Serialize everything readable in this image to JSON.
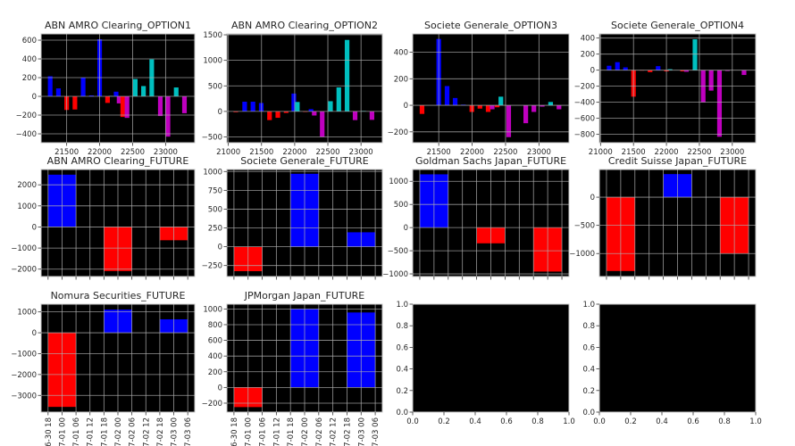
{
  "colors": {
    "b": "#0000ff",
    "r": "#ff0000",
    "c": "#00bfbf",
    "m": "#bf00bf",
    "axes_bg": "#000000",
    "grid": "#b0b0b0"
  },
  "chart_data": [
    {
      "type": "bar",
      "title": "ABN AMRO Clearing_OPTION1",
      "xlim": [
        21112,
        23442
      ],
      "ylim": [
        -495,
        667
      ],
      "grid": true,
      "align": "center",
      "bar_width": 70,
      "xticks": [
        21500,
        22000,
        22500,
        23000
      ],
      "xticklabels": [
        "21500",
        "22000",
        "22500",
        "23000"
      ],
      "yticks": [
        -400,
        -200,
        0,
        200,
        400,
        600
      ],
      "yticklabels": [
        "−400",
        "−200",
        "0",
        "200",
        "400",
        "600"
      ],
      "bars": [
        [
          21250,
          215,
          "b"
        ],
        [
          21375,
          85,
          "b"
        ],
        [
          21500,
          -145,
          "r"
        ],
        [
          21625,
          -140,
          "r"
        ],
        [
          21750,
          200,
          "b"
        ],
        [
          21875,
          10,
          "b"
        ],
        [
          22000,
          610,
          "b"
        ],
        [
          22120,
          -70,
          "r"
        ],
        [
          22170,
          5,
          "c"
        ],
        [
          22250,
          50,
          "b"
        ],
        [
          22295,
          -75,
          "m"
        ],
        [
          22350,
          -220,
          "r"
        ],
        [
          22415,
          -230,
          "m"
        ],
        [
          22540,
          185,
          "c"
        ],
        [
          22665,
          110,
          "c"
        ],
        [
          22790,
          395,
          "c"
        ],
        [
          22920,
          -210,
          "m"
        ],
        [
          23036,
          -430,
          "m"
        ],
        [
          23161,
          95,
          "c"
        ],
        [
          23286,
          -180,
          "m"
        ]
      ]
    },
    {
      "type": "bar",
      "title": "ABN AMRO Clearing_OPTION2",
      "xlim": [
        20978,
        23321
      ],
      "ylim": [
        -613,
        1518
      ],
      "grid": true,
      "align": "center",
      "bar_width": 70,
      "xticks": [
        21000,
        21500,
        22000,
        22500,
        23000
      ],
      "xticklabels": [
        "21000",
        "21500",
        "22000",
        "22500",
        "23000"
      ],
      "yticks": [
        -500,
        0,
        500,
        1000,
        1500
      ],
      "yticklabels": [
        "−500",
        "0",
        "500",
        "1000",
        "1500"
      ],
      "bars": [
        [
          21112,
          -15,
          "r"
        ],
        [
          21246,
          190,
          "b"
        ],
        [
          21371,
          190,
          "b"
        ],
        [
          21496,
          165,
          "b"
        ],
        [
          21621,
          -170,
          "r"
        ],
        [
          21746,
          -125,
          "r"
        ],
        [
          21871,
          -30,
          "r"
        ],
        [
          21987,
          350,
          "b"
        ],
        [
          22040,
          185,
          "c"
        ],
        [
          22161,
          -10,
          "r"
        ],
        [
          22246,
          45,
          "b"
        ],
        [
          22295,
          -80,
          "m"
        ],
        [
          22415,
          -500,
          "m"
        ],
        [
          22540,
          200,
          "c"
        ],
        [
          22665,
          470,
          "c"
        ],
        [
          22790,
          1400,
          "c"
        ],
        [
          22911,
          -170,
          "m"
        ],
        [
          23040,
          10,
          "c"
        ],
        [
          23165,
          -165,
          "m"
        ]
      ]
    },
    {
      "type": "bar",
      "title": "Societe Generale_OPTION3",
      "xlim": [
        21110,
        23450
      ],
      "ylim": [
        -282,
        538
      ],
      "grid": true,
      "align": "center",
      "bar_width": 70,
      "xticks": [
        21500,
        22000,
        22500,
        23000
      ],
      "xticklabels": [
        "21500",
        "22000",
        "22500",
        "23000"
      ],
      "yticks": [
        -200,
        0,
        200,
        400
      ],
      "yticklabels": [
        "−200",
        "0",
        "200",
        "400"
      ],
      "bars": [
        [
          21250,
          -65,
          "r"
        ],
        [
          21500,
          500,
          "b"
        ],
        [
          21625,
          145,
          "b"
        ],
        [
          21746,
          55,
          "b"
        ],
        [
          21870,
          5,
          "b"
        ],
        [
          21996,
          -50,
          "r"
        ],
        [
          22117,
          -25,
          "r"
        ],
        [
          22240,
          -50,
          "r"
        ],
        [
          22300,
          -30,
          "m"
        ],
        [
          22375,
          -15,
          "r"
        ],
        [
          22430,
          65,
          "c"
        ],
        [
          22547,
          -240,
          "m"
        ],
        [
          22803,
          -135,
          "m"
        ],
        [
          22924,
          -50,
          "m"
        ],
        [
          23049,
          -10,
          "m"
        ],
        [
          23175,
          25,
          "c"
        ],
        [
          23300,
          -30,
          "m"
        ]
      ]
    },
    {
      "type": "bar",
      "title": "Societe Generale_OPTION4",
      "xlim": [
        20982,
        23355
      ],
      "ylim": [
        -904,
        452
      ],
      "grid": true,
      "align": "center",
      "bar_width": 70,
      "xticks": [
        21000,
        21500,
        22000,
        22500,
        23000
      ],
      "xticklabels": [
        "21000",
        "21500",
        "22000",
        "22500",
        "23000"
      ],
      "yticks": [
        -800,
        -600,
        -400,
        -200,
        0,
        200,
        400
      ],
      "yticklabels": [
        "−800",
        "−600",
        "−400",
        "−200",
        "0",
        "200",
        "400"
      ],
      "bars": [
        [
          21130,
          55,
          "b"
        ],
        [
          21256,
          100,
          "b"
        ],
        [
          21378,
          35,
          "b"
        ],
        [
          21500,
          -330,
          "r"
        ],
        [
          21626,
          -5,
          "r"
        ],
        [
          21752,
          -25,
          "r"
        ],
        [
          21874,
          50,
          "b"
        ],
        [
          22000,
          -15,
          "r"
        ],
        [
          22054,
          12,
          "c"
        ],
        [
          22245,
          -15,
          "r"
        ],
        [
          22303,
          -20,
          "m"
        ],
        [
          22433,
          385,
          "c"
        ],
        [
          22558,
          -400,
          "m"
        ],
        [
          22679,
          -255,
          "m"
        ],
        [
          22805,
          -830,
          "m"
        ],
        [
          22926,
          -10,
          "m"
        ],
        [
          23178,
          -60,
          "m"
        ]
      ]
    },
    {
      "type": "bar",
      "title": "ABN AMRO Clearing_FUTURE",
      "xlim": [
        -3,
        63
      ],
      "ylim": [
        -2350,
        2727
      ],
      "grid": true,
      "align": "edge",
      "bar_width": 12,
      "xticks": [
        0,
        6,
        12,
        18,
        24,
        30,
        36,
        42,
        48,
        54,
        60
      ],
      "yticks": [
        -2000,
        -1000,
        0,
        1000,
        2000
      ],
      "yticklabels": [
        "−2000",
        "−1000",
        "0",
        "1000",
        "2000"
      ],
      "bars": [
        [
          0,
          2480,
          "b"
        ],
        [
          24,
          -2090,
          "r"
        ],
        [
          48,
          -630,
          "r"
        ]
      ]
    },
    {
      "type": "bar",
      "title": "Societe Generale_FUTURE",
      "xlim": [
        -3,
        63
      ],
      "ylim": [
        -396,
        1027
      ],
      "grid": true,
      "align": "edge",
      "bar_width": 12,
      "xticks": [
        0,
        6,
        12,
        18,
        24,
        30,
        36,
        42,
        48,
        54,
        60
      ],
      "yticks": [
        -250,
        0,
        250,
        500,
        750,
        1000
      ],
      "yticklabels": [
        "−250",
        "0",
        "250",
        "500",
        "750",
        "1000"
      ],
      "bars": [
        [
          0,
          -325,
          "r"
        ],
        [
          24,
          970,
          "b"
        ],
        [
          48,
          192,
          "b"
        ]
      ]
    },
    {
      "type": "bar",
      "title": "Goldman Sachs Japan_FUTURE",
      "xlim": [
        -3,
        63
      ],
      "ylim": [
        -1057,
        1255
      ],
      "grid": true,
      "align": "edge",
      "bar_width": 12,
      "xticks": [
        0,
        6,
        12,
        18,
        24,
        30,
        36,
        42,
        48,
        54,
        60
      ],
      "yticks": [
        -1000,
        -500,
        0,
        500,
        1000
      ],
      "yticklabels": [
        "−1000",
        "−500",
        "0",
        "500",
        "1000"
      ],
      "bars": [
        [
          0,
          1150,
          "b"
        ],
        [
          24,
          -340,
          "r"
        ],
        [
          48,
          -950,
          "r"
        ]
      ]
    },
    {
      "type": "bar",
      "title": "Credit Suisse Japan_FUTURE",
      "xlim": [
        -3,
        63
      ],
      "ylim": [
        -1408,
        492
      ],
      "grid": true,
      "align": "edge",
      "bar_width": 12,
      "xticks": [
        0,
        6,
        12,
        18,
        24,
        30,
        36,
        42,
        48,
        54,
        60
      ],
      "yticks": [
        -1000,
        -500,
        0
      ],
      "yticklabels": [
        "−1000",
        "−500",
        "0"
      ],
      "bars": [
        [
          0,
          -1310,
          "r"
        ],
        [
          24,
          410,
          "b"
        ],
        [
          48,
          -1000,
          "r"
        ]
      ]
    },
    {
      "type": "bar",
      "title": "Nomura Securities_FUTURE",
      "xlim": [
        -3,
        63
      ],
      "ylim": [
        -3800,
        1370
      ],
      "grid": true,
      "align": "edge",
      "bar_width": 12,
      "xticks": [
        0,
        6,
        12,
        18,
        24,
        30,
        36,
        42,
        48,
        54,
        60
      ],
      "xticklabels": [
        "06-30 18",
        "07-01 00",
        "07-01 06",
        "07-01 12",
        "07-01 18",
        "07-02 00",
        "07-02 06",
        "07-02 12",
        "07-02 18",
        "07-03 00",
        "07-03 06"
      ],
      "rotate_x": true,
      "yticks": [
        -3000,
        -2000,
        -1000,
        0,
        1000
      ],
      "yticklabels": [
        "−3000",
        "−2000",
        "−1000",
        "0",
        "1000"
      ],
      "bars": [
        [
          0,
          -3550,
          "r"
        ],
        [
          24,
          1110,
          "b"
        ],
        [
          48,
          645,
          "b"
        ]
      ]
    },
    {
      "type": "bar",
      "title": "JPMorgan Japan_FUTURE",
      "xlim": [
        -3,
        63
      ],
      "ylim": [
        -314,
        1061
      ],
      "grid": true,
      "align": "edge",
      "bar_width": 12,
      "xticks": [
        0,
        6,
        12,
        18,
        24,
        30,
        36,
        42,
        48,
        54,
        60
      ],
      "xticklabels": [
        "06-30 18",
        "07-01 00",
        "07-01 06",
        "07-01 12",
        "07-01 18",
        "07-02 00",
        "07-02 06",
        "07-02 12",
        "07-02 18",
        "07-03 00",
        "07-03 06"
      ],
      "rotate_x": true,
      "yticks": [
        -200,
        0,
        200,
        400,
        600,
        800,
        1000
      ],
      "yticklabels": [
        "−200",
        "0",
        "200",
        "400",
        "600",
        "800",
        "1000"
      ],
      "bars": [
        [
          0,
          -250,
          "r"
        ],
        [
          24,
          1000,
          "b"
        ],
        [
          48,
          955,
          "b"
        ]
      ]
    },
    {
      "type": "bar",
      "title": "",
      "xlim": [
        0,
        1
      ],
      "ylim": [
        0,
        1
      ],
      "grid": false,
      "align": "edge",
      "bar_width": 0,
      "xticks": [
        0,
        0.2,
        0.4,
        0.6,
        0.8,
        1.0
      ],
      "xticklabels": [
        "0.0",
        "0.2",
        "0.4",
        "0.6",
        "0.8",
        "1.0"
      ],
      "yticks": [
        0,
        0.2,
        0.4,
        0.6,
        0.8,
        1.0
      ],
      "yticklabels": [
        "0.0",
        "0.2",
        "0.4",
        "0.6",
        "0.8",
        "1.0"
      ],
      "bars": []
    },
    {
      "type": "bar",
      "title": "",
      "xlim": [
        0,
        1
      ],
      "ylim": [
        0,
        1
      ],
      "grid": false,
      "align": "edge",
      "bar_width": 0,
      "xticks": [
        0,
        0.2,
        0.4,
        0.6,
        0.8,
        1.0
      ],
      "xticklabels": [
        "0.0",
        "0.2",
        "0.4",
        "0.6",
        "0.8",
        "1.0"
      ],
      "yticks": [
        0,
        0.2,
        0.4,
        0.6,
        0.8,
        1.0
      ],
      "yticklabels": [
        "0.0",
        "0.2",
        "0.4",
        "0.6",
        "0.8",
        "1.0"
      ],
      "bars": []
    }
  ]
}
